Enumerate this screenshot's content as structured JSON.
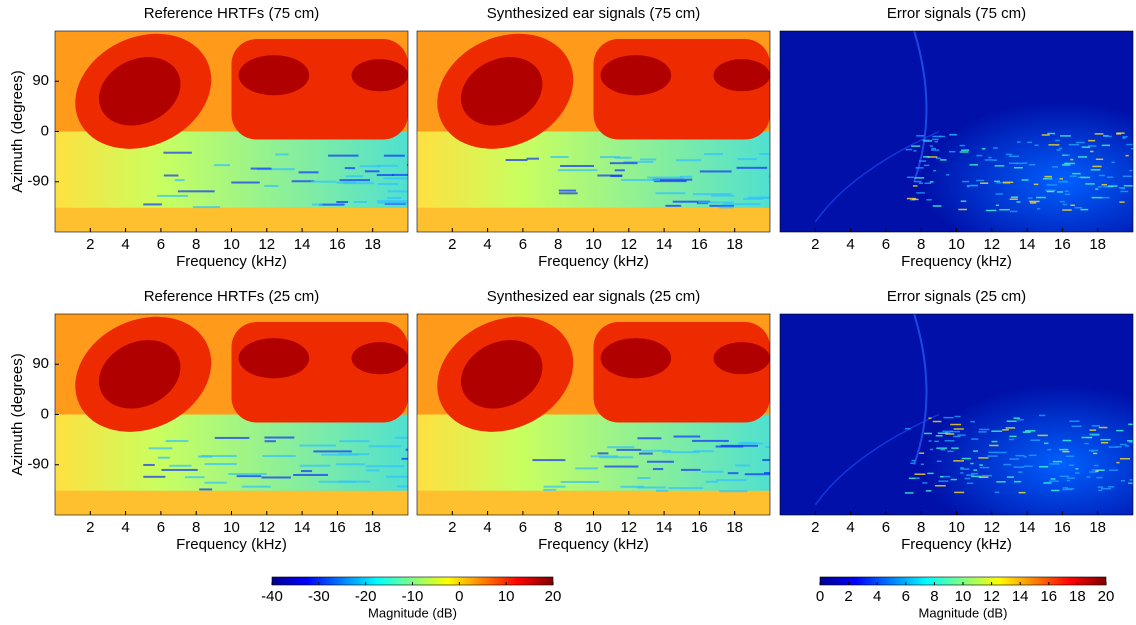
{
  "chart_data": [
    {
      "type": "heatmap",
      "title": "Reference HRTFs (75 cm)",
      "xlabel": "Frequency (kHz)",
      "ylabel": "Azimuth (degrees)",
      "xlim": [
        0,
        20
      ],
      "xticks": [
        2,
        4,
        6,
        8,
        10,
        12,
        14,
        16,
        18
      ],
      "ylim": [
        -180,
        180
      ],
      "yticks": [
        -90,
        0,
        90
      ]
    },
    {
      "type": "heatmap",
      "title": "Synthesized ear signals (75 cm)",
      "xlabel": "Frequency (kHz)",
      "xlim": [
        0,
        20
      ],
      "xticks": [
        2,
        4,
        6,
        8,
        10,
        12,
        14,
        16,
        18
      ],
      "ylim": [
        -180,
        180
      ]
    },
    {
      "type": "heatmap",
      "title": "Error signals (75 cm)",
      "xlabel": "Frequency (kHz)",
      "xlim": [
        0,
        20
      ],
      "xticks": [
        2,
        4,
        6,
        8,
        10,
        12,
        14,
        16,
        18
      ],
      "ylim": [
        -180,
        180
      ]
    },
    {
      "type": "heatmap",
      "title": "Reference HRTFs (25 cm)",
      "xlabel": "Frequency (kHz)",
      "ylabel": "Azimuth (degrees)",
      "xlim": [
        0,
        20
      ],
      "xticks": [
        2,
        4,
        6,
        8,
        10,
        12,
        14,
        16,
        18
      ],
      "ylim": [
        -180,
        180
      ],
      "yticks": [
        -90,
        0,
        90
      ]
    },
    {
      "type": "heatmap",
      "title": "Synthesized ear signals (25 cm)",
      "xlabel": "Frequency (kHz)",
      "xlim": [
        0,
        20
      ],
      "xticks": [
        2,
        4,
        6,
        8,
        10,
        12,
        14,
        16,
        18
      ],
      "ylim": [
        -180,
        180
      ]
    },
    {
      "type": "heatmap",
      "title": "Error signals (25 cm)",
      "xlabel": "Frequency (kHz)",
      "xlim": [
        0,
        20
      ],
      "xticks": [
        2,
        4,
        6,
        8,
        10,
        12,
        14,
        16,
        18
      ],
      "ylim": [
        -180,
        180
      ]
    },
    {
      "type": "colorbar",
      "label": "Magnitude (dB)",
      "lim": [
        -40,
        20
      ],
      "ticks": [
        -40,
        -30,
        -20,
        -10,
        0,
        10,
        20
      ]
    },
    {
      "type": "colorbar",
      "label": "Magnitude (dB)",
      "lim": [
        0,
        20
      ],
      "ticks": [
        0,
        2,
        4,
        6,
        8,
        10,
        12,
        14,
        16,
        18,
        20
      ]
    }
  ]
}
